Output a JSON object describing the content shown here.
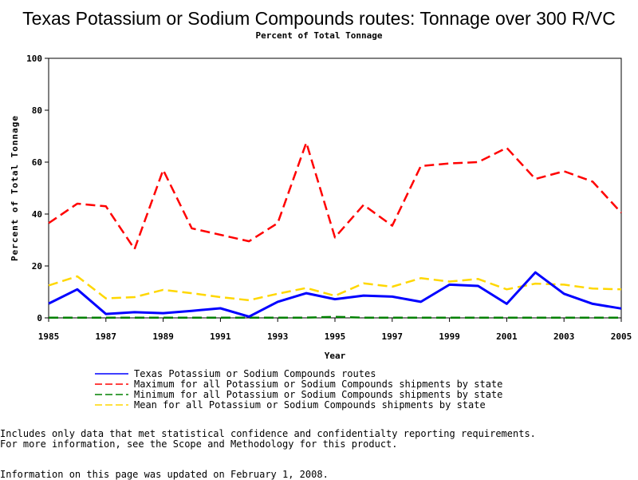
{
  "chart_data": {
    "type": "line",
    "title": "Texas Potassium or Sodium Compounds routes: Tonnage over 300 R/VC",
    "subtitle": "Percent of Total Tonnage",
    "xlabel": "Year",
    "ylabel": "Percent of Total Tonnage",
    "xlim": [
      1985,
      2005
    ],
    "ylim": [
      0,
      100
    ],
    "x_ticks": [
      "1985",
      "1987",
      "1989",
      "1991",
      "1993",
      "1995",
      "1997",
      "1999",
      "2001",
      "2003",
      "2005"
    ],
    "y_ticks": [
      "0",
      "20",
      "40",
      "60",
      "80",
      "100"
    ],
    "x": [
      1985,
      1986,
      1987,
      1988,
      1989,
      1990,
      1991,
      1992,
      1993,
      1994,
      1995,
      1996,
      1997,
      1998,
      1999,
      2000,
      2001,
      2002,
      2003,
      2004,
      2005
    ],
    "series": [
      {
        "name": "Texas Potassium or Sodium Compounds routes",
        "color": "#0000ff",
        "dash": "solid",
        "values": [
          5.5,
          11,
          1.5,
          2.2,
          1.8,
          2.7,
          3.7,
          0.5,
          6.2,
          9.5,
          7.2,
          8.6,
          8.2,
          6.2,
          12.8,
          12.3,
          5.4,
          17.5,
          9.3,
          5.4,
          3.6
        ]
      },
      {
        "name": "Maximum for all Potassium or Sodium Compounds shipments by state",
        "color": "#ff0000",
        "dash": "dashed",
        "values": [
          36.5,
          44,
          43,
          26.5,
          57,
          34.5,
          32,
          29.5,
          36.5,
          67.5,
          31,
          43.5,
          35.5,
          58.5,
          59.5,
          60,
          65.5,
          53.5,
          56.5,
          52.5,
          40.5
        ]
      },
      {
        "name": "Minimum for all Potassium or Sodium Compounds shipments by state",
        "color": "#008000",
        "dash": "dashed",
        "values": [
          0.1,
          0.1,
          0.1,
          0.1,
          0.1,
          0.1,
          0.1,
          0.1,
          0.1,
          0.1,
          0.4,
          0.1,
          0.1,
          0.1,
          0.1,
          0.1,
          0.1,
          0.1,
          0.1,
          0.1,
          0.1
        ]
      },
      {
        "name": "Mean for all Potassium or Sodium Compounds shipments by state",
        "color": "#ffd700",
        "dash": "dashed",
        "values": [
          12.5,
          16,
          7.5,
          8,
          10.8,
          9.5,
          8,
          6.8,
          9.3,
          11.5,
          8.5,
          13.3,
          12,
          15.3,
          14,
          15,
          11,
          13.2,
          12.8,
          11.3,
          11
        ]
      }
    ],
    "grid": false,
    "legend_position": "bottom"
  },
  "notes": {
    "line1": "Includes only data that met statistical confidence and confidentialty reporting requirements.",
    "line2": "For more information, see the Scope and Methodology for this product.",
    "updated": "Information on this page was updated on February 1, 2008."
  }
}
